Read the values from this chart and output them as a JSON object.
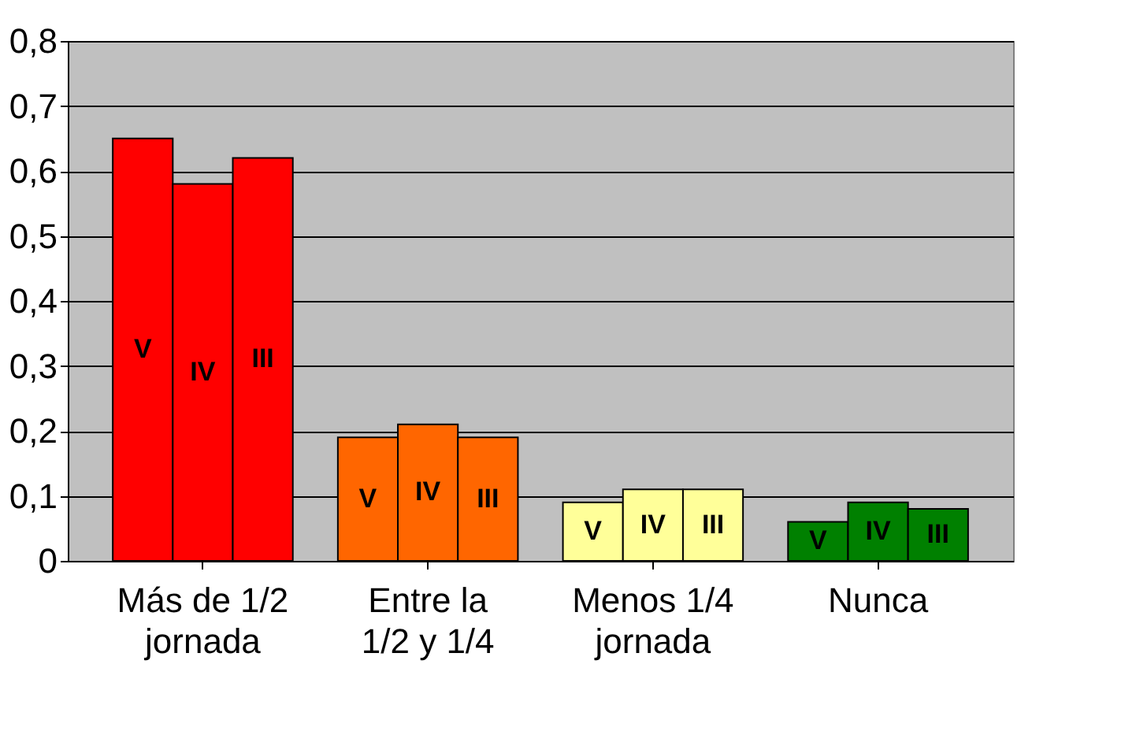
{
  "chart_data": {
    "type": "bar",
    "categories": [
      "Más de 1/2 jornada",
      "Entre la 1/2 y 1/4",
      "Menos 1/4 jornada",
      "Nunca"
    ],
    "series": [
      {
        "name": "V",
        "colors": [
          "#ff0000",
          "#ff6600",
          "#ffff99",
          "#008000"
        ],
        "values": [
          0.65,
          0.19,
          0.09,
          0.06
        ]
      },
      {
        "name": "IV",
        "colors": [
          "#ff0000",
          "#ff6600",
          "#ffff99",
          "#008000"
        ],
        "values": [
          0.58,
          0.21,
          0.11,
          0.09
        ]
      },
      {
        "name": "III",
        "colors": [
          "#ff0000",
          "#ff6600",
          "#ffff99",
          "#008000"
        ],
        "values": [
          0.62,
          0.19,
          0.11,
          0.08
        ]
      }
    ],
    "ylim": [
      0,
      0.8
    ],
    "yticks": [
      {
        "value": 0,
        "label": "0"
      },
      {
        "value": 0.1,
        "label": "0,1"
      },
      {
        "value": 0.2,
        "label": "0,2"
      },
      {
        "value": 0.3,
        "label": "0,3"
      },
      {
        "value": 0.4,
        "label": "0,4"
      },
      {
        "value": 0.5,
        "label": "0,5"
      },
      {
        "value": 0.6,
        "label": "0,6"
      },
      {
        "value": 0.7,
        "label": "0,7"
      },
      {
        "value": 0.8,
        "label": "0,8"
      }
    ],
    "grid": "y"
  }
}
